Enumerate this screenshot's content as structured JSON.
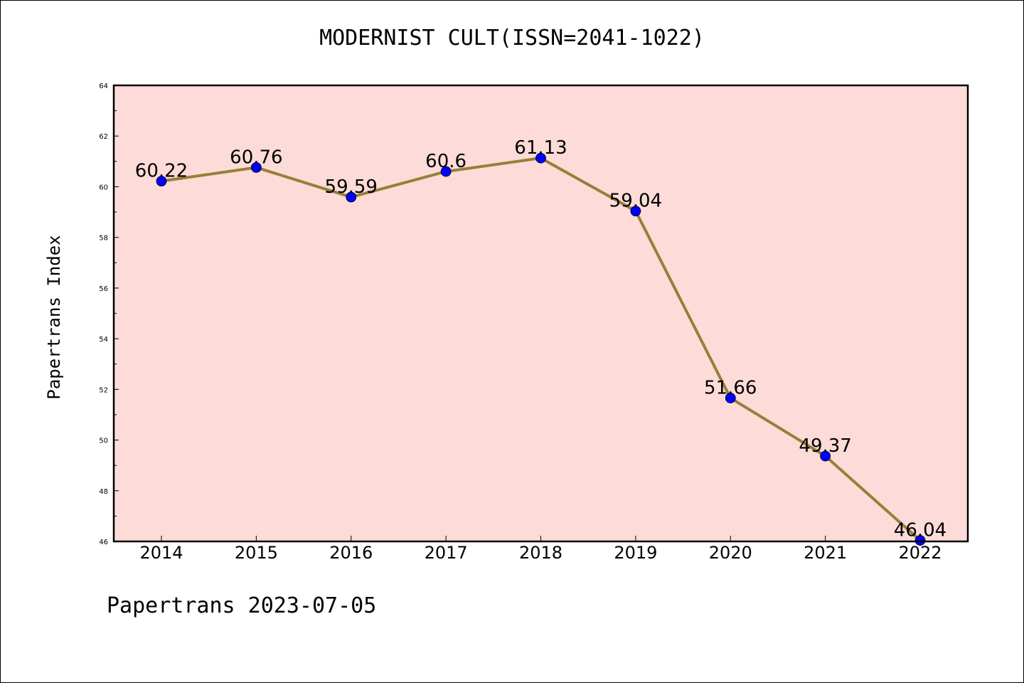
{
  "chart_data": {
    "type": "line",
    "title": "MODERNIST CULT(ISSN=2041-1022)",
    "xlabel": "",
    "ylabel": "Papertrans Index",
    "x": [
      "2014",
      "2015",
      "2016",
      "2017",
      "2018",
      "2019",
      "2020",
      "2021",
      "2022"
    ],
    "series": [
      {
        "values": [
          60.22,
          60.76,
          59.59,
          60.6,
          61.13,
          59.04,
          51.66,
          49.37,
          46.04
        ],
        "labels": [
          "60.22",
          "60.76",
          "59.59",
          "60.6",
          "61.13",
          "59.04",
          "51.66",
          "49.37",
          "46.04"
        ]
      }
    ],
    "ylim": [
      46,
      64
    ],
    "yticks": [
      "46",
      "48",
      "50",
      "52",
      "54",
      "56",
      "58",
      "60",
      "62",
      "64"
    ],
    "grid": false,
    "colors": {
      "plot_background": "#fddbd8",
      "line": "#968038",
      "marker": "#0000ff"
    }
  },
  "footer": "Papertrans 2023-07-05"
}
